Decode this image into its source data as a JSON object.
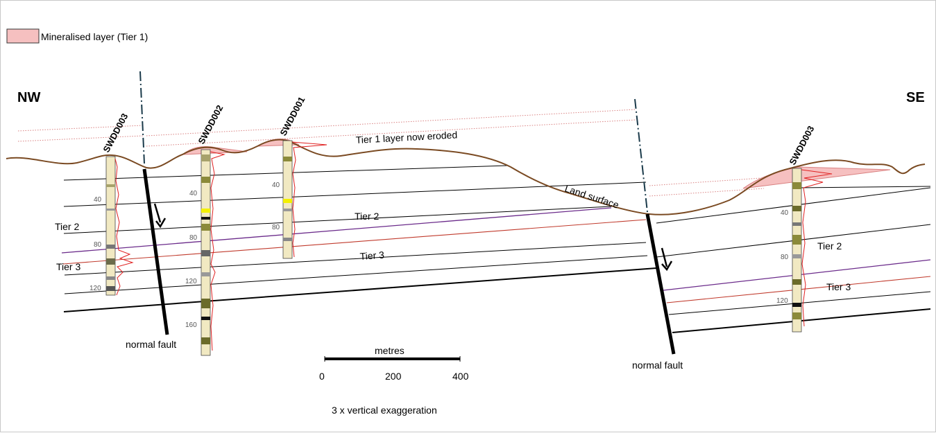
{
  "legend": {
    "label": "Mineralised layer (Tier 1)",
    "swatch_color": "#f6c0c0"
  },
  "directions": {
    "left": "NW",
    "right": "SE"
  },
  "drillholes": [
    {
      "label": "SWDD003",
      "depth_ticks": [
        "40",
        "80",
        "120"
      ]
    },
    {
      "label": "SWDD002",
      "depth_ticks": [
        "40",
        "80",
        "120",
        "160"
      ]
    },
    {
      "label": "SWDD001",
      "depth_ticks": [
        "40",
        "80"
      ]
    },
    {
      "label": "SWDD003",
      "depth_ticks": [
        "40",
        "80",
        "120"
      ]
    }
  ],
  "annotations": {
    "eroded": "Tier 1 layer now eroded",
    "land_surface": "Land surface",
    "fault_left": "normal fault",
    "fault_right": "normal fault",
    "tier2_left": "Tier 2",
    "tier3_left": "Tier 3",
    "tier2_mid": "Tier 2",
    "tier3_mid": "Tier 3",
    "tier2_right": "Tier 2",
    "tier3_right": "Tier 3"
  },
  "scale_bar": {
    "title": "metres",
    "ticks": [
      "0",
      "200",
      "400"
    ]
  },
  "exaggeration_note": "3 x vertical exaggeration",
  "colors": {
    "land_surface": "#7a4a22",
    "mineralised": "#f6c0c0",
    "tier_boundary": "#000000",
    "tier2_base": "#6a2a8a",
    "tier3_line": "#c0392b",
    "fault": "#000000",
    "assay_trace": "#e02020"
  }
}
